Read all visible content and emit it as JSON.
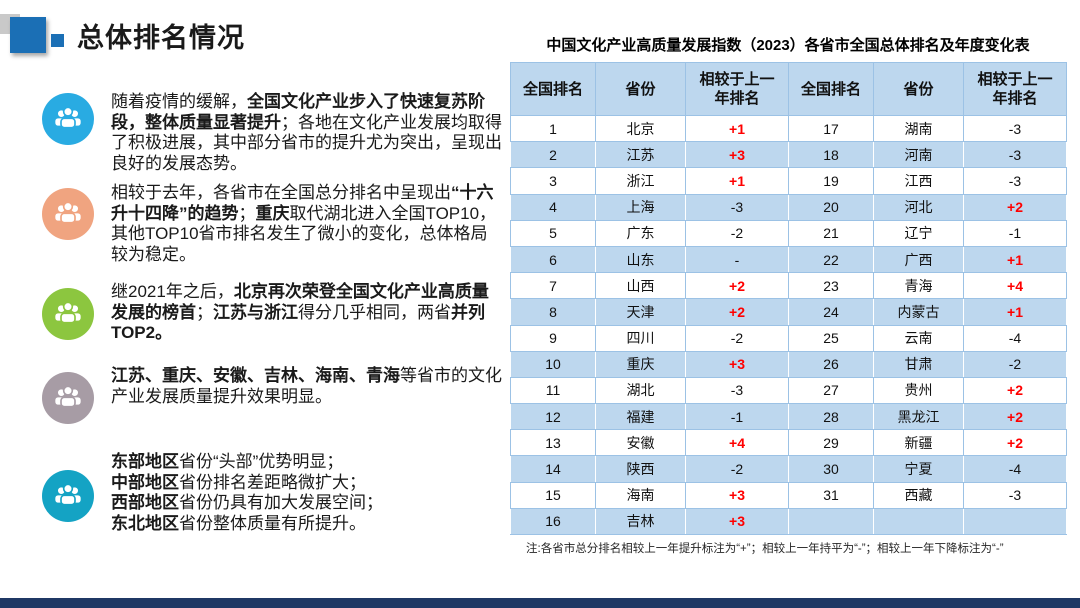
{
  "title": "总体排名情况",
  "bullets": [
    {
      "icon": "people-group-icon",
      "icon_color": "#29ABE2",
      "lines": [
        {
          "segments": [
            {
              "text": "随着疫情的缓解，",
              "bold": false
            },
            {
              "text": "全国文化产业步入了快速复苏阶段，整体质量显著提升",
              "bold": true
            },
            {
              "text": "；各地在文化产业发展均取得了积极进展，其中部分省市的提升尤为突出，呈现出良好的发展态势。",
              "bold": false
            }
          ]
        }
      ]
    },
    {
      "icon": "people-group-icon",
      "icon_color": "#F0A480",
      "lines": [
        {
          "segments": [
            {
              "text": "相较于去年，各省市在全国总分排名中呈现出",
              "bold": false
            },
            {
              "text": "“十六升十四降”的趋势",
              "bold": true
            },
            {
              "text": "；",
              "bold": false
            },
            {
              "text": "重庆",
              "bold": true
            },
            {
              "text": "取代湖北进入全国TOP10，其他TOP10省市排名发生了微小的变化，总体格局较为稳定。",
              "bold": false
            }
          ]
        }
      ]
    },
    {
      "icon": "people-group-icon",
      "icon_color": "#8CC63F",
      "lines": [
        {
          "segments": [
            {
              "text": "继2021年之后，",
              "bold": false
            },
            {
              "text": "北京再次荣登全国文化产业高质量发展的榜首",
              "bold": true
            },
            {
              "text": "；",
              "bold": false
            },
            {
              "text": "江苏与浙江",
              "bold": true
            },
            {
              "text": "得分几乎相同，两省",
              "bold": false
            },
            {
              "text": "并列TOP2。",
              "bold": true
            }
          ]
        }
      ]
    },
    {
      "icon": "people-group-icon",
      "icon_color": "#A79CA5",
      "lines": [
        {
          "segments": [
            {
              "text": "江苏、重庆、安徽、吉林、海南、青海",
              "bold": true
            },
            {
              "text": "等省市的文化产业发展质量提升效果明显。",
              "bold": false
            }
          ]
        }
      ]
    },
    {
      "icon": "people-group-icon",
      "icon_color": "#14A3C4",
      "lines": [
        {
          "segments": [
            {
              "text": "东部地区",
              "bold": true
            },
            {
              "text": "省份“头部”优势明显；",
              "bold": false
            }
          ]
        },
        {
          "segments": [
            {
              "text": "中部地区",
              "bold": true
            },
            {
              "text": "省份排名差距略微扩大；",
              "bold": false
            }
          ]
        },
        {
          "segments": [
            {
              "text": "西部地区",
              "bold": true
            },
            {
              "text": "省份仍具有加大发展空间；",
              "bold": false
            }
          ]
        },
        {
          "segments": [
            {
              "text": "东北地区",
              "bold": true
            },
            {
              "text": "省份整体质量有所提升。",
              "bold": false
            }
          ]
        }
      ]
    }
  ],
  "table": {
    "title": "中国文化产业高质量发展指数（2023）各省市全国总体排名及年度变化表",
    "headers": [
      "全国排名",
      "省份",
      "相较于上一年排名",
      "全国排名",
      "省份",
      "相较于上一年排名"
    ],
    "rows": [
      {
        "cells": [
          {
            "t": "1"
          },
          {
            "t": "北京"
          },
          {
            "t": "+1",
            "red": true
          },
          {
            "t": "17"
          },
          {
            "t": "湖南"
          },
          {
            "t": "-3"
          }
        ]
      },
      {
        "cells": [
          {
            "t": "2"
          },
          {
            "t": "江苏"
          },
          {
            "t": "+3",
            "red": true
          },
          {
            "t": "18"
          },
          {
            "t": "河南"
          },
          {
            "t": "-3"
          }
        ]
      },
      {
        "cells": [
          {
            "t": "3"
          },
          {
            "t": "浙江"
          },
          {
            "t": "+1",
            "red": true
          },
          {
            "t": "19"
          },
          {
            "t": "江西"
          },
          {
            "t": "-3"
          }
        ]
      },
      {
        "cells": [
          {
            "t": "4"
          },
          {
            "t": "上海"
          },
          {
            "t": "-3"
          },
          {
            "t": "20"
          },
          {
            "t": "河北"
          },
          {
            "t": "+2",
            "red": true
          }
        ]
      },
      {
        "cells": [
          {
            "t": "5"
          },
          {
            "t": "广东"
          },
          {
            "t": "-2"
          },
          {
            "t": "21"
          },
          {
            "t": "辽宁"
          },
          {
            "t": "-1"
          }
        ]
      },
      {
        "cells": [
          {
            "t": "6"
          },
          {
            "t": "山东"
          },
          {
            "t": "-"
          },
          {
            "t": "22"
          },
          {
            "t": "广西"
          },
          {
            "t": "+1",
            "red": true
          }
        ]
      },
      {
        "cells": [
          {
            "t": "7"
          },
          {
            "t": "山西"
          },
          {
            "t": "+2",
            "red": true
          },
          {
            "t": "23"
          },
          {
            "t": "青海"
          },
          {
            "t": "+4",
            "red": true
          }
        ]
      },
      {
        "cells": [
          {
            "t": "8"
          },
          {
            "t": "天津"
          },
          {
            "t": "+2",
            "red": true
          },
          {
            "t": "24"
          },
          {
            "t": "内蒙古"
          },
          {
            "t": "+1",
            "red": true
          }
        ]
      },
      {
        "cells": [
          {
            "t": "9"
          },
          {
            "t": "四川"
          },
          {
            "t": "-2"
          },
          {
            "t": "25"
          },
          {
            "t": "云南"
          },
          {
            "t": "-4"
          }
        ]
      },
      {
        "cells": [
          {
            "t": "10"
          },
          {
            "t": "重庆"
          },
          {
            "t": "+3",
            "red": true
          },
          {
            "t": "26"
          },
          {
            "t": "甘肃"
          },
          {
            "t": "-2"
          }
        ]
      },
      {
        "cells": [
          {
            "t": "11"
          },
          {
            "t": "湖北"
          },
          {
            "t": "-3"
          },
          {
            "t": "27"
          },
          {
            "t": "贵州"
          },
          {
            "t": "+2",
            "red": true
          }
        ]
      },
      {
        "cells": [
          {
            "t": "12"
          },
          {
            "t": "福建"
          },
          {
            "t": "-1"
          },
          {
            "t": "28"
          },
          {
            "t": "黑龙江"
          },
          {
            "t": "+2",
            "red": true
          }
        ]
      },
      {
        "cells": [
          {
            "t": "13"
          },
          {
            "t": "安徽"
          },
          {
            "t": "+4",
            "red": true
          },
          {
            "t": "29"
          },
          {
            "t": "新疆"
          },
          {
            "t": "+2",
            "red": true
          }
        ]
      },
      {
        "cells": [
          {
            "t": "14"
          },
          {
            "t": "陕西"
          },
          {
            "t": "-2"
          },
          {
            "t": "30"
          },
          {
            "t": "宁夏"
          },
          {
            "t": "-4"
          }
        ]
      },
      {
        "cells": [
          {
            "t": "15"
          },
          {
            "t": "海南"
          },
          {
            "t": "+3",
            "red": true
          },
          {
            "t": "31"
          },
          {
            "t": "西藏"
          },
          {
            "t": "-3"
          }
        ]
      },
      {
        "cells": [
          {
            "t": "16"
          },
          {
            "t": "吉林"
          },
          {
            "t": "+3",
            "red": true
          },
          {
            "t": ""
          },
          {
            "t": ""
          },
          {
            "t": ""
          }
        ]
      }
    ],
    "note": "注:各省市总分排名相较上一年提升标注为“+”；相较上一年持平为“-”；相较上一年下降标注为“-”"
  },
  "colors": {
    "accent_blue": "#1B6FB5",
    "table_header_bg": "#BDD7EE",
    "table_border": "#9CC2E5",
    "positive_red": "#FF0000",
    "footer_bar": "#1F3864",
    "icon_colors": [
      "#29ABE2",
      "#F0A480",
      "#8CC63F",
      "#A79CA5",
      "#14A3C4"
    ]
  }
}
